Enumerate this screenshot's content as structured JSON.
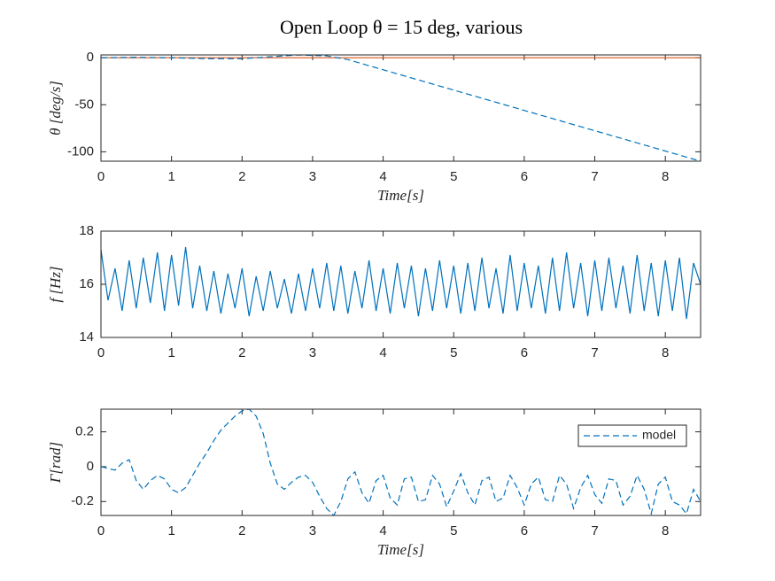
{
  "chart_data": [
    {
      "type": "line",
      "title": "Open Loop θ = 15 deg, various",
      "ylabel": "θ [deg/s]",
      "xlabel": "Time[s]",
      "xlim": [
        0,
        8.5
      ],
      "ylim": [
        -110,
        3
      ],
      "xticks": [
        0,
        1,
        2,
        3,
        4,
        5,
        6,
        7,
        8
      ],
      "yticks": [
        -100,
        -50,
        0
      ],
      "series": [
        {
          "color": "#d95319",
          "linestyle": "solid",
          "x": [
            0,
            8.5
          ],
          "values": [
            0,
            0
          ]
        },
        {
          "color": "#0072bd",
          "linestyle": "dashed",
          "x": [
            0,
            0.5,
            1,
            1.5,
            2,
            2.5,
            2.8,
            3.2,
            3.5,
            8.5
          ],
          "values": [
            0,
            0.5,
            0,
            -1,
            -1,
            1.5,
            3,
            2,
            -2,
            -110
          ]
        }
      ]
    },
    {
      "type": "line",
      "ylabel": "f [Hz]",
      "xlim": [
        0,
        8.5
      ],
      "ylim": [
        14,
        18
      ],
      "xticks": [
        0,
        1,
        2,
        3,
        4,
        5,
        6,
        7,
        8
      ],
      "yticks": [
        14,
        16,
        18
      ],
      "series": [
        {
          "color": "#0072bd",
          "linestyle": "solid",
          "x": [
            0,
            0.1,
            0.2,
            0.3,
            0.4,
            0.5,
            0.6,
            0.7,
            0.8,
            0.9,
            1,
            1.1,
            1.2,
            1.3,
            1.4,
            1.5,
            1.6,
            1.7,
            1.8,
            1.9,
            2,
            2.1,
            2.2,
            2.3,
            2.4,
            2.5,
            2.6,
            2.7,
            2.8,
            2.9,
            3,
            3.1,
            3.2,
            3.3,
            3.4,
            3.5,
            3.6,
            3.7,
            3.8,
            3.9,
            4,
            4.1,
            4.2,
            4.3,
            4.4,
            4.5,
            4.6,
            4.7,
            4.8,
            4.9,
            5,
            5.1,
            5.2,
            5.3,
            5.4,
            5.5,
            5.6,
            5.7,
            5.8,
            5.9,
            6,
            6.1,
            6.2,
            6.3,
            6.4,
            6.5,
            6.6,
            6.7,
            6.8,
            6.9,
            7,
            7.1,
            7.2,
            7.3,
            7.4,
            7.5,
            7.6,
            7.7,
            7.8,
            7.9,
            8,
            8.1,
            8.2,
            8.3,
            8.4,
            8.5
          ],
          "values": [
            17.3,
            15.4,
            16.6,
            15.0,
            16.9,
            15.1,
            17.0,
            15.3,
            17.2,
            15.0,
            17.1,
            15.2,
            17.4,
            15.1,
            16.7,
            15.0,
            16.5,
            14.9,
            16.4,
            15.1,
            16.6,
            14.8,
            16.3,
            15.0,
            16.5,
            15.1,
            16.2,
            14.9,
            16.4,
            15.0,
            16.6,
            15.1,
            16.8,
            15.0,
            16.7,
            14.9,
            16.5,
            15.1,
            16.9,
            15.0,
            16.6,
            14.9,
            16.8,
            15.1,
            16.7,
            14.8,
            16.6,
            15.0,
            16.9,
            15.1,
            16.7,
            14.9,
            16.8,
            15.0,
            17.0,
            15.1,
            16.6,
            14.9,
            17.1,
            15.0,
            16.8,
            15.1,
            16.7,
            14.9,
            17.0,
            15.0,
            17.2,
            15.1,
            16.8,
            14.8,
            16.9,
            15.0,
            17.0,
            15.1,
            16.7,
            14.9,
            17.1,
            15.0,
            16.8,
            14.8,
            16.9,
            15.0,
            17.0,
            14.7,
            16.8,
            16.0
          ]
        }
      ]
    },
    {
      "type": "line",
      "ylabel": "Γ[rad]",
      "xlabel": "Time[s]",
      "xlim": [
        0,
        8.5
      ],
      "ylim": [
        -0.28,
        0.33
      ],
      "xticks": [
        0,
        1,
        2,
        3,
        4,
        5,
        6,
        7,
        8
      ],
      "yticks": [
        -0.2,
        0,
        0.2
      ],
      "legend": "northeast",
      "series": [
        {
          "name": "model",
          "color": "#0072bd",
          "linestyle": "dashed",
          "x": [
            0,
            0.1,
            0.2,
            0.3,
            0.4,
            0.5,
            0.6,
            0.7,
            0.8,
            0.9,
            1,
            1.1,
            1.2,
            1.3,
            1.4,
            1.5,
            1.6,
            1.7,
            1.8,
            1.9,
            2,
            2.1,
            2.2,
            2.3,
            2.4,
            2.5,
            2.6,
            2.7,
            2.8,
            2.9,
            3,
            3.1,
            3.2,
            3.3,
            3.4,
            3.5,
            3.6,
            3.7,
            3.8,
            3.9,
            4,
            4.1,
            4.2,
            4.3,
            4.4,
            4.5,
            4.6,
            4.7,
            4.8,
            4.9,
            5,
            5.1,
            5.2,
            5.3,
            5.4,
            5.5,
            5.6,
            5.7,
            5.8,
            5.9,
            6,
            6.1,
            6.2,
            6.3,
            6.4,
            6.5,
            6.6,
            6.7,
            6.8,
            6.9,
            7,
            7.1,
            7.2,
            7.3,
            7.4,
            7.5,
            7.6,
            7.7,
            7.8,
            7.9,
            8,
            8.1,
            8.2,
            8.3,
            8.4,
            8.5
          ],
          "values": [
            0,
            -0.01,
            -0.02,
            0.02,
            0.04,
            -0.08,
            -0.13,
            -0.08,
            -0.05,
            -0.07,
            -0.13,
            -0.15,
            -0.12,
            -0.05,
            0.02,
            0.08,
            0.15,
            0.21,
            0.25,
            0.29,
            0.32,
            0.33,
            0.29,
            0.19,
            0.02,
            -0.1,
            -0.13,
            -0.09,
            -0.06,
            -0.05,
            -0.09,
            -0.17,
            -0.24,
            -0.28,
            -0.2,
            -0.07,
            -0.03,
            -0.15,
            -0.21,
            -0.08,
            -0.05,
            -0.18,
            -0.22,
            -0.07,
            -0.06,
            -0.2,
            -0.19,
            -0.05,
            -0.1,
            -0.23,
            -0.14,
            -0.04,
            -0.15,
            -0.22,
            -0.08,
            -0.06,
            -0.2,
            -0.18,
            -0.05,
            -0.12,
            -0.22,
            -0.1,
            -0.06,
            -0.19,
            -0.2,
            -0.05,
            -0.1,
            -0.24,
            -0.12,
            -0.05,
            -0.16,
            -0.21,
            -0.07,
            -0.08,
            -0.22,
            -0.17,
            -0.05,
            -0.13,
            -0.27,
            -0.1,
            -0.06,
            -0.2,
            -0.22,
            -0.27,
            -0.13,
            -0.2
          ]
        }
      ]
    }
  ]
}
